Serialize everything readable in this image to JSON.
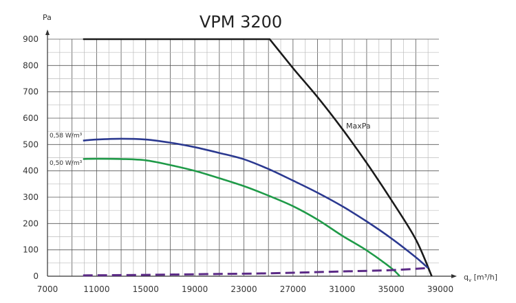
{
  "chart_data": {
    "type": "line",
    "title": "VPM 3200",
    "xlabel": "q",
    "xlabel_sub": "v",
    "xlabel_unit": " [m³/h]",
    "ylabel": "Pa",
    "xlim": [
      7000,
      39000
    ],
    "ylim": [
      0,
      900
    ],
    "x_ticks": [
      7000,
      11000,
      15000,
      19000,
      23000,
      27000,
      31000,
      35000,
      39000
    ],
    "y_ticks": [
      0,
      100,
      200,
      300,
      400,
      500,
      600,
      700,
      800,
      900
    ],
    "grid": true,
    "colors": {
      "maxpa": "#1a1a1a",
      "w058": "#2b3990",
      "w050": "#1f9a48",
      "system": "#5b2a86"
    },
    "series": [
      {
        "name": "MaxPa",
        "key": "maxpa",
        "label": "MaxPa",
        "dashed": false,
        "points": [
          [
            9900,
            900
          ],
          [
            25100,
            900
          ],
          [
            27000,
            790
          ],
          [
            29000,
            680
          ],
          [
            31000,
            560
          ],
          [
            33000,
            430
          ],
          [
            35000,
            290
          ],
          [
            37000,
            140
          ],
          [
            38300,
            0
          ]
        ]
      },
      {
        "name": "0,58 W/m³",
        "key": "w058",
        "label": "0,58 W/m³",
        "dashed": false,
        "points": [
          [
            9900,
            515
          ],
          [
            11000,
            519
          ],
          [
            13000,
            522
          ],
          [
            15000,
            519
          ],
          [
            17000,
            507
          ],
          [
            19000,
            490
          ],
          [
            21000,
            468
          ],
          [
            23000,
            444
          ],
          [
            25000,
            407
          ],
          [
            27000,
            363
          ],
          [
            29000,
            317
          ],
          [
            31000,
            266
          ],
          [
            33000,
            208
          ],
          [
            35000,
            144
          ],
          [
            37000,
            72
          ],
          [
            38000,
            31
          ]
        ]
      },
      {
        "name": "0,50 W/m³",
        "key": "w050",
        "label": "0,50 W/m³",
        "dashed": false,
        "points": [
          [
            9900,
            445
          ],
          [
            11000,
            446
          ],
          [
            13000,
            445
          ],
          [
            15000,
            440
          ],
          [
            17000,
            422
          ],
          [
            19000,
            400
          ],
          [
            21000,
            372
          ],
          [
            23000,
            342
          ],
          [
            25000,
            306
          ],
          [
            27000,
            266
          ],
          [
            29000,
            215
          ],
          [
            31000,
            154
          ],
          [
            33000,
            98
          ],
          [
            35000,
            31
          ],
          [
            35700,
            0
          ]
        ]
      },
      {
        "name": "System curve",
        "key": "system",
        "label": "",
        "dashed": true,
        "points": [
          [
            9900,
            3
          ],
          [
            15000,
            5
          ],
          [
            20000,
            8
          ],
          [
            25000,
            11
          ],
          [
            31000,
            18
          ],
          [
            35000,
            23
          ],
          [
            38000,
            31
          ]
        ]
      }
    ]
  }
}
